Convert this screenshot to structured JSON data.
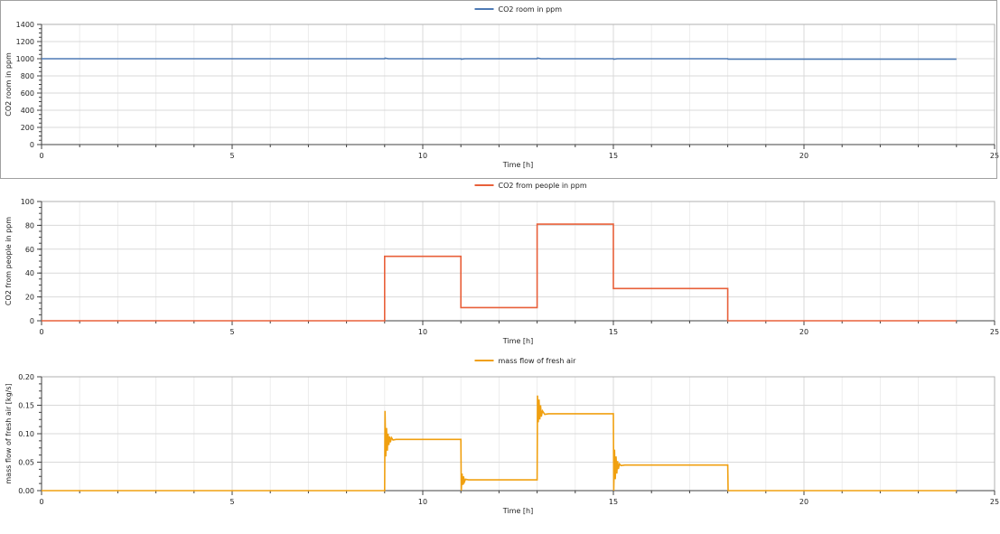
{
  "colors": {
    "series1": "#4e7ab5",
    "series2": "#e8603a",
    "series3": "#f0a010",
    "grid": "#d9d9d9",
    "axis": "#404040",
    "frame": "#a0a0a0"
  },
  "chart_data": [
    {
      "type": "line",
      "title": "",
      "xlabel": "Time [h]",
      "ylabel": "CO2 room in ppm",
      "xlim": [
        0,
        25
      ],
      "ylim": [
        0,
        1400
      ],
      "xticks": [
        0,
        5,
        10,
        15,
        20,
        25
      ],
      "yticks": [
        0,
        200,
        400,
        600,
        800,
        1000,
        1200,
        1400
      ],
      "ytick_labels": [
        "0",
        "200",
        "400",
        "600",
        "800",
        "1000",
        "1200",
        "1400"
      ],
      "grid": true,
      "legend": "top-center",
      "series": [
        {
          "name": "CO2 room in ppm",
          "color": "#4e7ab5",
          "x": [
            0,
            9,
            9.01,
            9.1,
            11,
            11.01,
            11.1,
            13,
            13.01,
            13.1,
            15,
            15.01,
            15.1,
            18,
            18.01,
            24
          ],
          "y": [
            1000,
            1000,
            1007,
            1000,
            1000,
            995,
            1000,
            1000,
            1008,
            1000,
            1000,
            994,
            1000,
            1000,
            995,
            995
          ]
        }
      ]
    },
    {
      "type": "line",
      "title": "",
      "xlabel": "Time [h]",
      "ylabel": "CO2 from people in ppm",
      "xlim": [
        0,
        25
      ],
      "ylim": [
        0,
        100
      ],
      "xticks": [
        0,
        5,
        10,
        15,
        20,
        25
      ],
      "yticks": [
        0,
        20,
        40,
        60,
        80,
        100
      ],
      "ytick_labels": [
        "0",
        "20",
        "40",
        "60",
        "80",
        "100"
      ],
      "grid": true,
      "legend": "top-center",
      "series": [
        {
          "name": "CO2 from people in ppm",
          "color": "#e8603a",
          "x": [
            0,
            9,
            9,
            11,
            11,
            13,
            13,
            15,
            15,
            18,
            18,
            24
          ],
          "y": [
            0,
            0,
            54,
            54,
            11,
            11,
            81,
            81,
            27,
            27,
            0,
            0
          ]
        }
      ]
    },
    {
      "type": "line",
      "title": "",
      "xlabel": "Time [h]",
      "ylabel": "mass flow of fresh air [kg/s]",
      "xlim": [
        0,
        25
      ],
      "ylim": [
        0,
        0.2
      ],
      "xticks": [
        0,
        5,
        10,
        15,
        20,
        25
      ],
      "yticks": [
        0,
        0.05,
        0.1,
        0.15,
        0.2
      ],
      "ytick_labels": [
        "0.00",
        "0.05",
        "0.10",
        "0.15",
        "0.20"
      ],
      "grid": true,
      "legend": "top-center",
      "series": [
        {
          "name": "mass flow of fresh air",
          "color": "#f0a010",
          "x": [
            0,
            9,
            9.01,
            9.03,
            9.05,
            9.07,
            9.09,
            9.11,
            9.13,
            9.15,
            9.18,
            9.22,
            9.3,
            11,
            11.01,
            11.03,
            11.05,
            11.07,
            11.09,
            11.12,
            11.2,
            13,
            13.01,
            13.03,
            13.05,
            13.07,
            13.09,
            13.11,
            13.14,
            13.2,
            13.3,
            15,
            15.01,
            15.03,
            15.05,
            15.07,
            15.09,
            15.11,
            15.13,
            15.16,
            15.2,
            15.3,
            18,
            18.01,
            24
          ],
          "y": [
            0,
            0,
            0.14,
            0.06,
            0.11,
            0.07,
            0.1,
            0.08,
            0.095,
            0.085,
            0.093,
            0.089,
            0.09,
            0.09,
            0,
            0.03,
            0.01,
            0.025,
            0.015,
            0.02,
            0.019,
            0.019,
            0.167,
            0.12,
            0.16,
            0.125,
            0.15,
            0.13,
            0.14,
            0.134,
            0.135,
            0.135,
            0,
            0.072,
            0.02,
            0.06,
            0.03,
            0.052,
            0.038,
            0.047,
            0.044,
            0.045,
            0.045,
            0,
            0
          ]
        }
      ]
    }
  ]
}
